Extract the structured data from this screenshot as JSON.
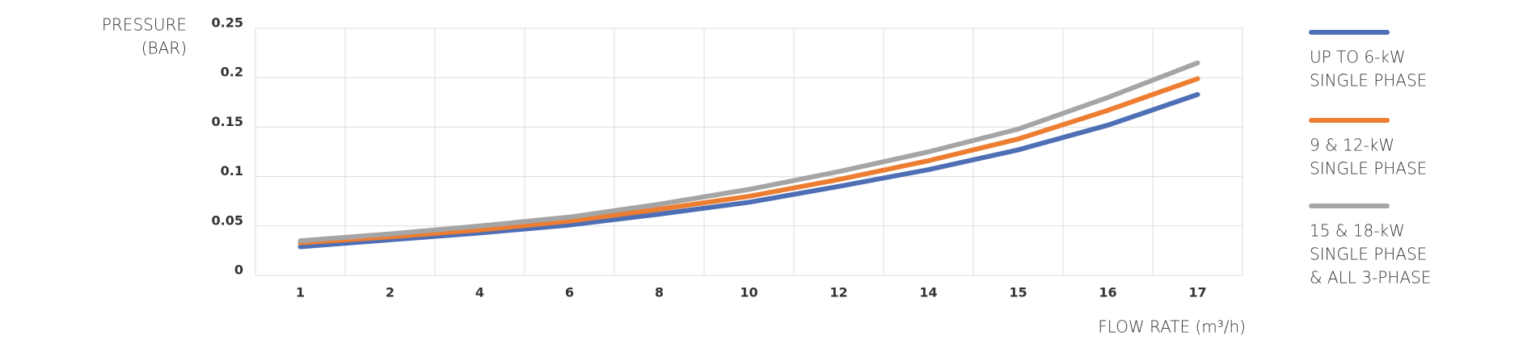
{
  "chart_data": {
    "type": "line",
    "y_label": [
      "PRESSURE",
      "(BAR)"
    ],
    "x_label": "FLOW RATE (m³/h)",
    "categories": [
      "1",
      "2",
      "4",
      "6",
      "8",
      "10",
      "12",
      "14",
      "15",
      "16",
      "17"
    ],
    "ylim": [
      0,
      0.25
    ],
    "yticks": [
      0,
      0.05,
      0.1,
      0.15,
      0.2,
      0.25
    ],
    "grid": true,
    "series": [
      {
        "name": [
          "UP TO 6-kW",
          "SINGLE PHASE"
        ],
        "color": "#4e6fb5",
        "values": [
          0.029,
          0.036,
          0.043,
          0.051,
          0.062,
          0.074,
          0.09,
          0.107,
          0.127,
          0.152,
          0.183
        ]
      },
      {
        "name": [
          "9 & 12-kW",
          "SINGLE PHASE"
        ],
        "color": "#ed7d31",
        "values": [
          0.033,
          0.039,
          0.046,
          0.055,
          0.067,
          0.08,
          0.097,
          0.116,
          0.138,
          0.167,
          0.199
        ]
      },
      {
        "name": [
          "15 & 18-kW",
          "SINGLE PHASE",
          "& ALL 3-PHASE"
        ],
        "color": "#a5a5a5",
        "values": [
          0.035,
          0.042,
          0.05,
          0.059,
          0.072,
          0.087,
          0.105,
          0.125,
          0.148,
          0.18,
          0.215
        ]
      }
    ]
  }
}
